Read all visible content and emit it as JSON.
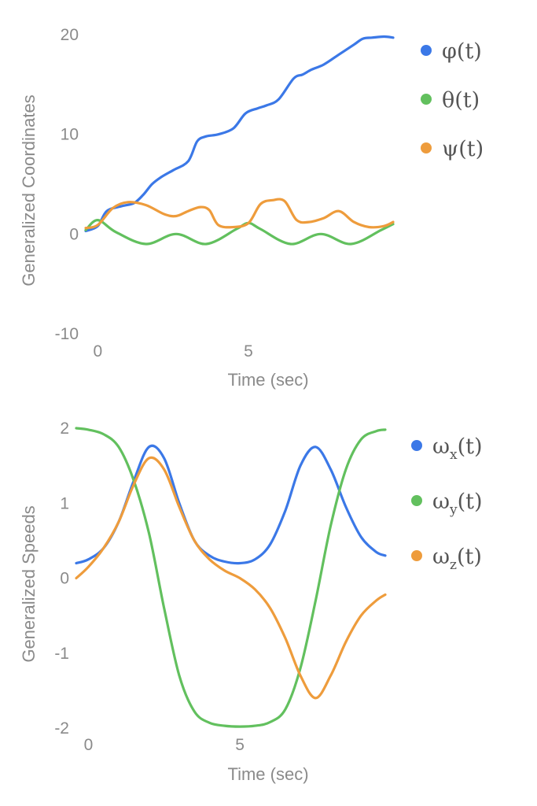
{
  "colors": {
    "blue": "#3b78e7",
    "green": "#62c05e",
    "orange": "#ee9c3c",
    "text": "#8a8a8a"
  },
  "chart_data": [
    {
      "type": "line",
      "xlabel": "Time (sec)",
      "ylabel": "Generalized Coordinates",
      "xlim": [
        -0.4,
        9.8
      ],
      "ylim": [
        -10,
        20
      ],
      "xticks": [
        {
          "value": 0,
          "label": "0"
        },
        {
          "value": 5,
          "label": "5"
        }
      ],
      "yticks": [
        {
          "value": 20,
          "label": "20"
        },
        {
          "value": 10,
          "label": "10"
        },
        {
          "value": 0,
          "label": "0"
        },
        {
          "value": -10,
          "label": "-10"
        }
      ],
      "legend": "right",
      "series": [
        {
          "name": "φ(t)",
          "base": "φ",
          "sub": "",
          "suffix": "(t)",
          "color": "blue",
          "x": [
            -0.4,
            0.0,
            0.3,
            0.8,
            1.2,
            1.5,
            1.8,
            2.1,
            2.5,
            3.0,
            3.3,
            3.6,
            4.0,
            4.5,
            4.9,
            5.3,
            5.6,
            6.0,
            6.5,
            6.8,
            7.1,
            7.5,
            8.0,
            8.5,
            8.8,
            9.1,
            9.5,
            9.8
          ],
          "y": [
            0.3,
            0.8,
            2.3,
            2.8,
            3.1,
            3.9,
            5.0,
            5.7,
            6.4,
            7.3,
            9.3,
            9.8,
            10.0,
            10.6,
            12.1,
            12.6,
            12.9,
            13.5,
            15.6,
            16.0,
            16.5,
            17.0,
            18.0,
            19.0,
            19.6,
            19.7,
            19.8,
            19.7
          ]
        },
        {
          "name": "θ(t)",
          "base": "θ",
          "sub": "",
          "suffix": "(t)",
          "color": "green",
          "x": [
            -0.4,
            0.0,
            0.6,
            1.6,
            2.6,
            3.6,
            4.6,
            5.0,
            5.4,
            6.4,
            7.4,
            8.4,
            9.4,
            9.8
          ],
          "y": [
            0.4,
            1.4,
            0.2,
            -1.0,
            0.0,
            -1.0,
            0.5,
            1.1,
            0.5,
            -1.0,
            0.0,
            -1.0,
            0.4,
            1.0
          ]
        },
        {
          "name": "ψ(t)",
          "base": "ψ",
          "sub": "",
          "suffix": "(t)",
          "color": "orange",
          "x": [
            -0.4,
            0.0,
            0.5,
            1.0,
            1.6,
            2.2,
            2.6,
            3.0,
            3.4,
            3.7,
            4.0,
            4.5,
            5.0,
            5.4,
            5.8,
            6.2,
            6.6,
            7.0,
            7.5,
            8.0,
            8.5,
            9.0,
            9.5,
            9.8
          ],
          "y": [
            0.6,
            0.9,
            2.6,
            3.2,
            2.9,
            2.0,
            1.8,
            2.3,
            2.7,
            2.4,
            0.9,
            0.7,
            1.1,
            3.0,
            3.4,
            3.3,
            1.4,
            1.2,
            1.6,
            2.3,
            1.2,
            0.7,
            0.8,
            1.2
          ]
        }
      ]
    },
    {
      "type": "line",
      "xlabel": "Time (sec)",
      "ylabel": "Generalized Speeds",
      "xlim": [
        -0.4,
        9.8
      ],
      "ylim": [
        -2,
        2
      ],
      "xticks": [
        {
          "value": 0,
          "label": "0"
        },
        {
          "value": 5,
          "label": "5"
        }
      ],
      "yticks": [
        {
          "value": 2,
          "label": "2"
        },
        {
          "value": 1,
          "label": "1"
        },
        {
          "value": 0,
          "label": "0"
        },
        {
          "value": -1,
          "label": "-1"
        },
        {
          "value": -2,
          "label": "-2"
        }
      ],
      "legend": "right",
      "series": [
        {
          "name": "ωx(t)",
          "base": "ω",
          "sub": "x",
          "suffix": "(t)",
          "color": "blue",
          "x": [
            -0.4,
            0.0,
            0.5,
            1.0,
            1.5,
            2.0,
            2.5,
            3.0,
            3.5,
            4.0,
            4.5,
            5.0,
            5.5,
            6.0,
            6.5,
            7.0,
            7.5,
            8.0,
            8.5,
            9.0,
            9.5,
            9.8
          ],
          "y": [
            0.2,
            0.25,
            0.4,
            0.75,
            1.3,
            1.75,
            1.6,
            1.0,
            0.5,
            0.3,
            0.22,
            0.2,
            0.25,
            0.45,
            0.9,
            1.5,
            1.75,
            1.45,
            0.95,
            0.55,
            0.35,
            0.3
          ]
        },
        {
          "name": "ωy(t)",
          "base": "ω",
          "sub": "y",
          "suffix": "(t)",
          "color": "green",
          "x": [
            -0.4,
            0.0,
            0.5,
            1.0,
            1.5,
            2.0,
            2.5,
            3.0,
            3.5,
            4.0,
            4.5,
            5.0,
            5.5,
            6.0,
            6.5,
            7.0,
            7.5,
            8.0,
            8.5,
            9.0,
            9.5,
            9.8
          ],
          "y": [
            2.0,
            1.98,
            1.92,
            1.75,
            1.3,
            0.6,
            -0.4,
            -1.3,
            -1.78,
            -1.93,
            -1.97,
            -1.98,
            -1.97,
            -1.92,
            -1.75,
            -1.2,
            -0.3,
            0.7,
            1.45,
            1.85,
            1.96,
            1.98
          ]
        },
        {
          "name": "ωz(t)",
          "base": "ω",
          "sub": "z",
          "suffix": "(t)",
          "color": "orange",
          "x": [
            -0.4,
            0.0,
            0.5,
            1.0,
            1.5,
            2.0,
            2.5,
            3.0,
            3.5,
            4.0,
            4.5,
            5.0,
            5.5,
            6.0,
            6.5,
            7.0,
            7.5,
            8.0,
            8.5,
            9.0,
            9.5,
            9.8
          ],
          "y": [
            0.0,
            0.15,
            0.4,
            0.75,
            1.25,
            1.6,
            1.45,
            0.95,
            0.5,
            0.25,
            0.1,
            0.0,
            -0.15,
            -0.4,
            -0.8,
            -1.3,
            -1.6,
            -1.3,
            -0.85,
            -0.5,
            -0.3,
            -0.22
          ]
        }
      ]
    }
  ]
}
